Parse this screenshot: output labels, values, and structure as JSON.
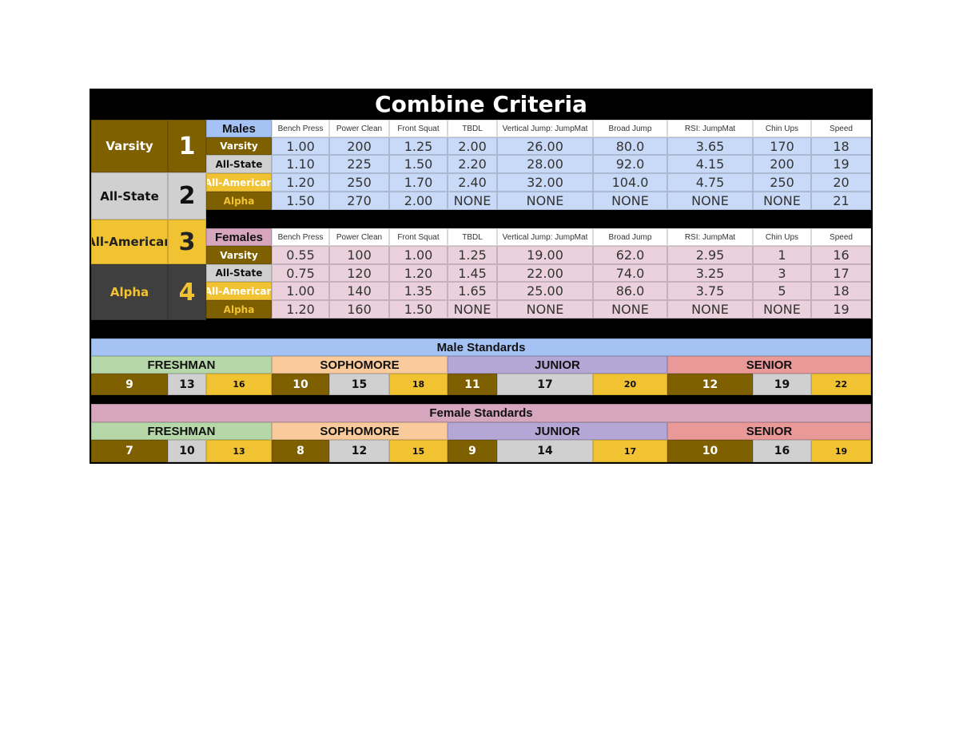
{
  "title": "Combine Criteria",
  "levels": [
    {
      "name": "Varsity",
      "number": 1
    },
    {
      "name": "All-State",
      "number": 2
    },
    {
      "name": "All-American",
      "number": 3
    },
    {
      "name": "Alpha",
      "number": 4
    }
  ],
  "males": {
    "label": "Males",
    "columns": [
      "Bench Press",
      "Power Clean",
      "Front Squat",
      "TBDL",
      "Vertical Jump: JumpMat",
      "Broad Jump",
      "RSI: JumpMat",
      "Chin Ups",
      "Speed"
    ],
    "rows": [
      {
        "level": "Varsity",
        "values": [
          "1.00",
          "200",
          "1.25",
          "2.00",
          "26.00",
          "80.0",
          "3.65",
          "170",
          "18"
        ]
      },
      {
        "level": "All-State",
        "values": [
          "1.10",
          "225",
          "1.50",
          "2.20",
          "28.00",
          "92.0",
          "4.15",
          "200",
          "19"
        ]
      },
      {
        "level": "All-American",
        "values": [
          "1.20",
          "250",
          "1.70",
          "2.40",
          "32.00",
          "104.0",
          "4.75",
          "250",
          "20"
        ]
      },
      {
        "level": "Alpha",
        "values": [
          "1.50",
          "270",
          "2.00",
          "NONE",
          "NONE",
          "NONE",
          "NONE",
          "NONE",
          "21"
        ]
      }
    ]
  },
  "females": {
    "label": "Females",
    "columns": [
      "Bench Press",
      "Power Clean",
      "Front Squat",
      "TBDL",
      "Vertical Jump: JumpMat",
      "Broad Jump",
      "RSI: JumpMat",
      "Chin Ups",
      "Speed"
    ],
    "rows": [
      {
        "level": "Varsity",
        "values": [
          "0.55",
          "100",
          "1.00",
          "1.25",
          "19.00",
          "62.0",
          "2.95",
          "1",
          "16"
        ]
      },
      {
        "level": "All-State",
        "values": [
          "0.75",
          "120",
          "1.20",
          "1.45",
          "22.00",
          "74.0",
          "3.25",
          "3",
          "17"
        ]
      },
      {
        "level": "All-American",
        "values": [
          "1.00",
          "140",
          "1.35",
          "1.65",
          "25.00",
          "86.0",
          "3.75",
          "5",
          "18"
        ]
      },
      {
        "level": "Alpha",
        "values": [
          "1.20",
          "160",
          "1.50",
          "NONE",
          "NONE",
          "NONE",
          "NONE",
          "NONE",
          "19"
        ]
      }
    ]
  },
  "standards": [
    {
      "title": "Male Standards",
      "groups": [
        {
          "grade": "FRESHMAN",
          "values": [
            9,
            13,
            16
          ]
        },
        {
          "grade": "SOPHOMORE",
          "values": [
            10,
            15,
            18
          ]
        },
        {
          "grade": "JUNIOR",
          "values": [
            11,
            17,
            20
          ]
        },
        {
          "grade": "SENIOR",
          "values": [
            12,
            19,
            22
          ]
        }
      ]
    },
    {
      "title": "Female Standards",
      "groups": [
        {
          "grade": "FRESHMAN",
          "values": [
            7,
            10,
            13
          ]
        },
        {
          "grade": "SOPHOMORE",
          "values": [
            8,
            12,
            15
          ]
        },
        {
          "grade": "JUNIOR",
          "values": [
            9,
            14,
            17
          ]
        },
        {
          "grade": "SENIOR",
          "values": [
            10,
            16,
            19
          ]
        }
      ]
    }
  ]
}
